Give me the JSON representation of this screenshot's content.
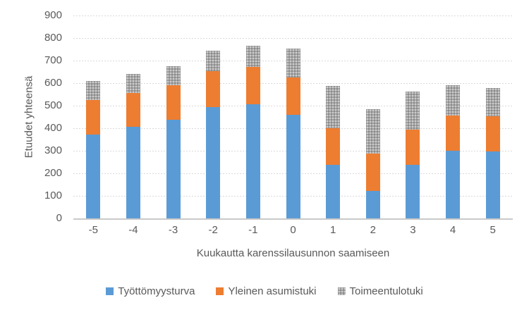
{
  "chart_data": {
    "type": "bar",
    "stacked": true,
    "title": "",
    "xlabel": "Kuukautta karenssilausunnon saamiseen",
    "ylabel": "Etuudet yhteensä",
    "categories": [
      "-5",
      "-4",
      "-3",
      "-2",
      "-1",
      "0",
      "1",
      "2",
      "3",
      "4",
      "5"
    ],
    "series": [
      {
        "name": "Työttömyysturva",
        "color": "#5b9bd5",
        "values": [
          373,
          405,
          438,
          493,
          507,
          458,
          239,
          122,
          237,
          301,
          297
        ]
      },
      {
        "name": "Yleinen asumistuki",
        "color": "#ed7d31",
        "values": [
          152,
          150,
          152,
          161,
          165,
          167,
          161,
          166,
          158,
          154,
          155
        ]
      },
      {
        "name": "Toimeentulotuki",
        "color": "#a6a6a6",
        "pattern": "stipple",
        "values": [
          85,
          85,
          85,
          91,
          93,
          127,
          189,
          197,
          167,
          135,
          126
        ]
      }
    ],
    "totals": [
      610,
      640,
      675,
      745,
      765,
      752,
      589,
      485,
      562,
      590,
      578
    ],
    "ylim": [
      0,
      900
    ],
    "ytick_step": 100,
    "yticks": [
      0,
      100,
      200,
      300,
      400,
      500,
      600,
      700,
      800,
      900
    ],
    "grid": true,
    "legend_position": "bottom",
    "colors": {
      "text": "#595959",
      "gridline": "#d9d9d9",
      "axis_line": "#c9c9c9",
      "background": "#ffffff"
    }
  }
}
